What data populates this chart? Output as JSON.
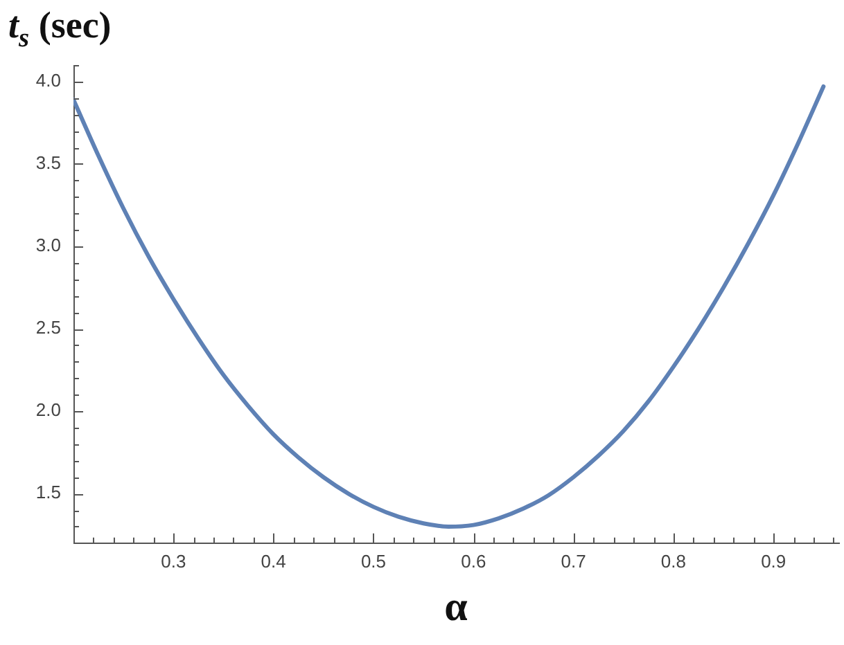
{
  "chart_data": {
    "type": "line",
    "ylabel": "t$_{s}$ (sec)",
    "xlabel": "α",
    "marker": "none",
    "x": [
      0.2,
      0.225,
      0.25,
      0.275,
      0.3,
      0.325,
      0.35,
      0.375,
      0.4,
      0.425,
      0.45,
      0.475,
      0.5,
      0.525,
      0.55,
      0.575,
      0.6,
      0.625,
      0.65,
      0.675,
      0.7,
      0.725,
      0.75,
      0.775,
      0.8,
      0.825,
      0.85,
      0.875,
      0.9,
      0.925,
      0.95
    ],
    "series": [
      {
        "color": "#5e81b5",
        "values": [
          3.89,
          3.55,
          3.23,
          2.94,
          2.68,
          2.44,
          2.22,
          2.03,
          1.86,
          1.72,
          1.6,
          1.5,
          1.42,
          1.36,
          1.32,
          1.3,
          1.31,
          1.35,
          1.41,
          1.49,
          1.6,
          1.73,
          1.88,
          2.06,
          2.27,
          2.5,
          2.75,
          3.02,
          3.31,
          3.63,
          3.97
        ]
      }
    ],
    "xlim": [
      0.2,
      0.965
    ],
    "ylim": [
      1.2,
      4.1
    ],
    "xticks": [
      {
        "value": 0.22,
        "label": null
      },
      {
        "value": 0.24,
        "label": null
      },
      {
        "value": 0.26,
        "label": null
      },
      {
        "value": 0.28,
        "label": null
      },
      0.3,
      {
        "value": 0.32,
        "label": null
      },
      {
        "value": 0.34,
        "label": null
      },
      {
        "value": 0.36,
        "label": null
      },
      {
        "value": 0.38,
        "label": null
      },
      0.4,
      {
        "value": 0.42,
        "label": null
      },
      {
        "value": 0.44,
        "label": null
      },
      {
        "value": 0.46,
        "label": null
      },
      {
        "value": 0.48,
        "label": null
      },
      0.5,
      {
        "value": 0.52,
        "label": null
      },
      {
        "value": 0.54,
        "label": null
      },
      {
        "value": 0.56,
        "label": null
      },
      {
        "value": 0.58,
        "label": null
      },
      0.6,
      {
        "value": 0.62,
        "label": null
      },
      {
        "value": 0.64,
        "label": null
      },
      {
        "value": 0.66,
        "label": null
      },
      {
        "value": 0.68,
        "label": null
      },
      0.7,
      {
        "value": 0.72,
        "label": null
      },
      {
        "value": 0.74,
        "label": null
      },
      {
        "value": 0.76,
        "label": null
      },
      {
        "value": 0.78,
        "label": null
      },
      0.8,
      {
        "value": 0.82,
        "label": null
      },
      {
        "value": 0.84,
        "label": null
      },
      {
        "value": 0.86,
        "label": null
      },
      {
        "value": 0.88,
        "label": null
      },
      0.9,
      {
        "value": 0.92,
        "label": null
      },
      {
        "value": 0.94,
        "label": null
      },
      {
        "value": 0.96,
        "label": null
      }
    ],
    "yticks": [
      {
        "value": 1.3,
        "label": null
      },
      {
        "value": 1.4,
        "label": null
      },
      1.5,
      {
        "value": 1.6,
        "label": null
      },
      {
        "value": 1.7,
        "label": null
      },
      {
        "value": 1.8,
        "label": null
      },
      {
        "value": 1.9,
        "label": null
      },
      {
        "value": 2,
        "label": "2.0"
      },
      {
        "value": 2.1,
        "label": null
      },
      {
        "value": 2.2,
        "label": null
      },
      {
        "value": 2.3,
        "label": null
      },
      {
        "value": 2.4,
        "label": null
      },
      2.5,
      {
        "value": 2.6,
        "label": null
      },
      {
        "value": 2.7,
        "label": null
      },
      {
        "value": 2.8,
        "label": null
      },
      {
        "value": 2.9,
        "label": null
      },
      {
        "value": 3,
        "label": "3.0"
      },
      {
        "value": 3.1,
        "label": null
      },
      {
        "value": 3.2,
        "label": null
      },
      {
        "value": 3.3,
        "label": null
      },
      {
        "value": 3.4,
        "label": null
      },
      3.5,
      {
        "value": 3.6,
        "label": null
      },
      {
        "value": 3.7,
        "label": null
      },
      {
        "value": 3.8,
        "label": null
      },
      {
        "value": 3.9,
        "label": null
      },
      {
        "value": 4,
        "label": "4.0"
      },
      {
        "value": 4.1,
        "label": null
      }
    ]
  }
}
